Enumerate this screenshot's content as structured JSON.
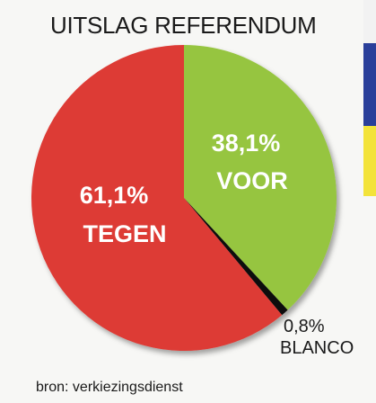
{
  "chart_data": {
    "type": "pie",
    "title": "UITSLAG REFERENDUM",
    "slices": [
      {
        "label": "VOOR",
        "value": 38.1,
        "value_label": "38,1%",
        "color": "#96c540"
      },
      {
        "label": "BLANCO",
        "value": 0.8,
        "value_label": "0,8%",
        "color": "#111111"
      },
      {
        "label": "TEGEN",
        "value": 61.1,
        "value_label": "61,1%",
        "color": "#dd3a35"
      }
    ],
    "source": "bron: verkiezingsdienst"
  },
  "colors": {
    "flag_white": "#f2f2f2",
    "flag_blue": "#2a3f9a",
    "flag_yellow": "#f3e33a"
  }
}
